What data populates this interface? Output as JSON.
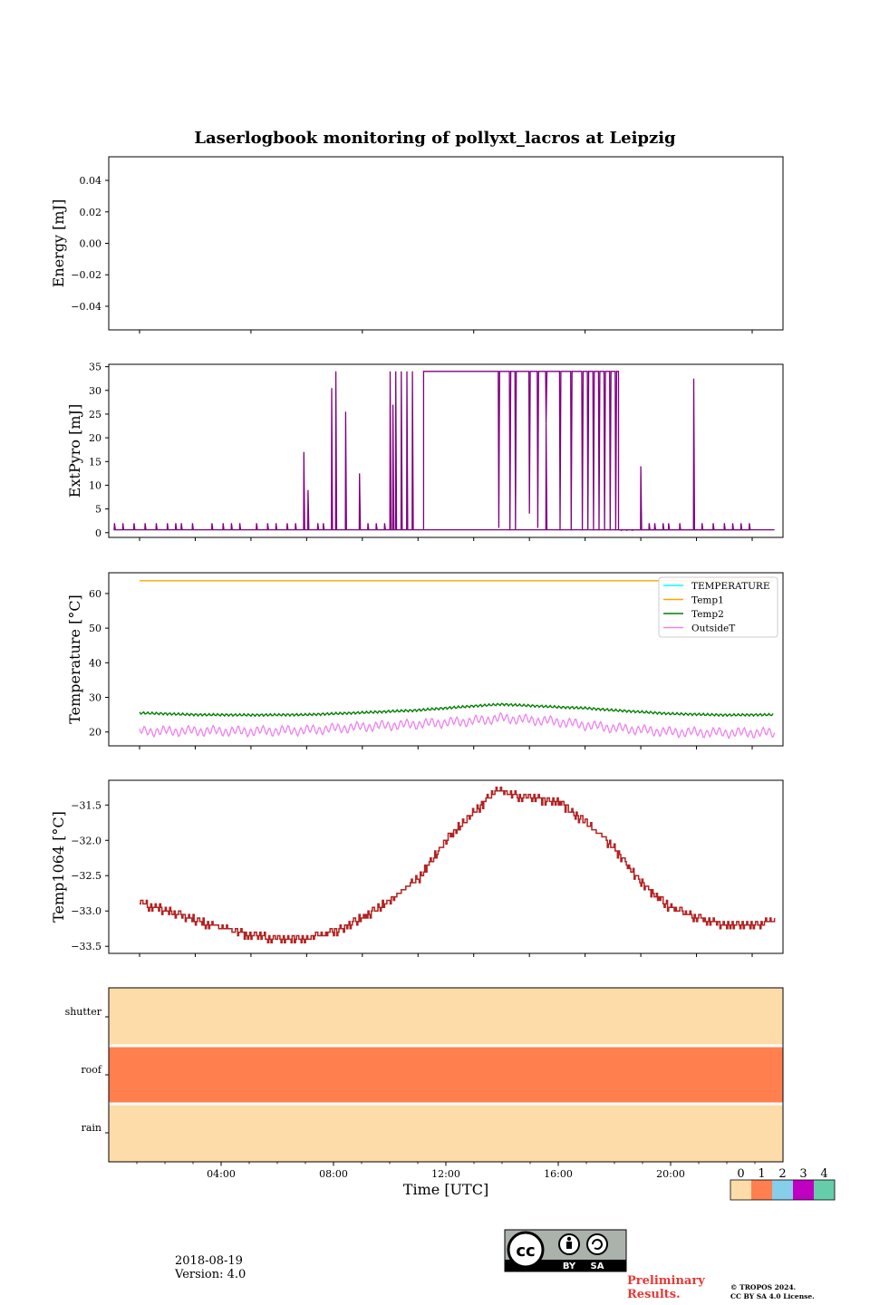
{
  "title": "Laserlogbook monitoring of pollyxt_lacros at Leipzig",
  "footer": {
    "date": "2018-08-19",
    "version": "Version: 4.0",
    "preliminary_line1": "Preliminary",
    "preliminary_line2": "Results.",
    "copyright_line1": "© TROPOS 2024.",
    "copyright_line2": "CC BY SA 4.0 License.",
    "cc_badge": {
      "by": "BY",
      "sa": "SA",
      "cc": "cc"
    }
  },
  "colors": {
    "extpyro": "#800080",
    "temperature": "#00ffff",
    "temp1": "#ffa500",
    "temp2": "#008000",
    "outsideT": "#ee82ee",
    "temp1064": "#b22222",
    "preliminary": "#e53935",
    "status_0": "#fddcaa",
    "status_1": "#ff7f4f",
    "status_2": "#87ceeb",
    "status_3": "#c000c0",
    "status_4": "#66cdaa"
  },
  "chart_data": [
    {
      "type": "line",
      "panel": "energy",
      "ylabel": "Energy [mJ]",
      "ylim": [
        -0.055,
        0.055
      ],
      "yticks": [
        "0.04",
        "0.02",
        "0.00",
        "−0.02",
        "−0.04"
      ],
      "ytick_values": [
        0.04,
        0.02,
        0.0,
        -0.02,
        -0.04
      ],
      "series": []
    },
    {
      "type": "line",
      "panel": "extpyro",
      "ylabel": "ExtPyro [mJ]",
      "ylim": [
        -1,
        35.5
      ],
      "yticks": [
        "35",
        "30",
        "25",
        "20",
        "15",
        "10",
        "5",
        "0"
      ],
      "ytick_values": [
        35,
        30,
        25,
        20,
        15,
        10,
        5,
        0
      ],
      "baseline": 0.6,
      "high": 34,
      "plateau_hours": [
        11.2,
        18.2
      ],
      "spikes": [
        [
          0.1,
          2
        ],
        [
          0.4,
          2
        ],
        [
          0.8,
          2
        ],
        [
          1.2,
          2
        ],
        [
          1.6,
          2
        ],
        [
          2.0,
          2
        ],
        [
          2.3,
          2
        ],
        [
          2.5,
          2
        ],
        [
          2.9,
          2
        ],
        [
          3.6,
          2
        ],
        [
          4.0,
          2
        ],
        [
          4.3,
          2
        ],
        [
          4.6,
          2
        ],
        [
          5.2,
          2
        ],
        [
          5.6,
          2
        ],
        [
          5.9,
          2
        ],
        [
          6.3,
          2
        ],
        [
          6.6,
          2
        ],
        [
          6.9,
          17
        ],
        [
          7.05,
          9
        ],
        [
          7.4,
          2
        ],
        [
          7.6,
          2
        ],
        [
          7.9,
          30.5
        ],
        [
          8.05,
          34
        ],
        [
          8.4,
          25.5
        ],
        [
          8.9,
          12.5
        ],
        [
          9.2,
          2
        ],
        [
          9.5,
          2
        ],
        [
          9.8,
          2
        ],
        [
          10.0,
          34
        ],
        [
          10.1,
          27
        ],
        [
          10.2,
          34
        ],
        [
          10.4,
          34
        ],
        [
          10.6,
          34
        ],
        [
          10.8,
          34
        ],
        [
          13.9,
          1
        ],
        [
          14.3,
          0.5
        ],
        [
          15.0,
          4
        ],
        [
          15.3,
          1
        ],
        [
          15.6,
          23
        ],
        [
          16.1,
          0.5
        ],
        [
          16.5,
          0.5
        ],
        [
          16.9,
          0.5
        ],
        [
          17.3,
          0.5
        ],
        [
          17.5,
          0.5
        ],
        [
          17.7,
          0.5
        ],
        [
          17.9,
          0.5
        ],
        [
          18.1,
          0.5
        ],
        [
          18.3,
          0.5
        ],
        [
          18.5,
          0.5
        ],
        [
          18.7,
          0.5
        ],
        [
          19.0,
          14
        ],
        [
          19.3,
          2
        ],
        [
          19.5,
          2
        ],
        [
          19.8,
          2
        ],
        [
          20.0,
          2
        ],
        [
          20.4,
          2
        ],
        [
          20.9,
          32.5
        ],
        [
          21.2,
          2
        ],
        [
          21.6,
          2
        ],
        [
          22.0,
          2
        ],
        [
          22.3,
          2
        ],
        [
          22.6,
          2
        ],
        [
          22.9,
          2
        ]
      ],
      "dips": [
        13.9,
        14.3,
        14.5,
        15.0,
        15.3,
        15.6,
        16.1,
        16.5,
        16.9,
        17.1,
        17.3,
        17.5,
        17.7,
        17.9,
        18.1
      ],
      "x_start_hour": 1.0,
      "x_end_hour": 23.8
    },
    {
      "type": "line",
      "panel": "temperature",
      "ylabel": "Temperature [°C]",
      "ylim": [
        16,
        66
      ],
      "yticks": [
        "60",
        "50",
        "40",
        "30",
        "20"
      ],
      "ytick_values": [
        60,
        50,
        40,
        30,
        20
      ],
      "legend_position": "top-right",
      "series": [
        {
          "name": "TEMPERATURE",
          "values": []
        },
        {
          "name": "Temp1",
          "values": [
            63.7,
            63.7
          ]
        },
        {
          "name": "Temp2",
          "base": [
            25.5,
            25.0,
            24.9,
            25.0,
            25.6,
            26.3,
            27.5,
            28.0,
            27.2,
            26.9,
            26.3,
            25.3,
            24.9,
            25.0
          ]
        },
        {
          "name": "OutsideT",
          "base": [
            20.2,
            20.3,
            20.2,
            20.5,
            21.5,
            22.3,
            23.2,
            24.0,
            23.0,
            22.0,
            21.2,
            20.0,
            19.8,
            19.8
          ]
        }
      ],
      "profile_hours": [
        1,
        3,
        5,
        7,
        9,
        11,
        13,
        14,
        16,
        17,
        18,
        20,
        22,
        23.8
      ]
    },
    {
      "type": "line",
      "panel": "temp1064",
      "ylabel": "Temp1064 [°C]",
      "ylim": [
        -33.6,
        -31.15
      ],
      "yticks": [
        "−31.5",
        "−32.0",
        "−32.5",
        "−33.0",
        "−33.5"
      ],
      "ytick_values": [
        -31.5,
        -32.0,
        -32.5,
        -33.0,
        -33.5
      ],
      "series": [
        {
          "name": "Temp1064",
          "hours": [
            1.0,
            2.0,
            3.5,
            5.0,
            6.0,
            7.0,
            8.0,
            9.0,
            10.0,
            11.0,
            12.0,
            13.0,
            13.8,
            14.8,
            16.0,
            17.0,
            18.0,
            19.0,
            20.0,
            21.0,
            22.0,
            23.0,
            23.8
          ],
          "values": [
            -32.9,
            -33.0,
            -33.2,
            -33.35,
            -33.4,
            -33.4,
            -33.3,
            -33.1,
            -32.85,
            -32.55,
            -32.0,
            -31.6,
            -31.3,
            -31.4,
            -31.45,
            -31.75,
            -32.1,
            -32.6,
            -32.95,
            -33.1,
            -33.2,
            -33.2,
            -33.15
          ]
        }
      ]
    },
    {
      "type": "heatmap",
      "panel": "status",
      "rows": [
        "shutter",
        "roof",
        "rain"
      ],
      "row_values": [
        0,
        1,
        0
      ],
      "xlabel": "Time [UTC]",
      "xlim_hours": [
        0,
        24
      ],
      "xticks": [
        "04:00",
        "08:00",
        "12:00",
        "16:00",
        "20:00"
      ],
      "xtick_hours": [
        4,
        8,
        12,
        16,
        20
      ],
      "colorbar": {
        "ticks": [
          "0",
          "1",
          "2",
          "3",
          "4"
        ]
      }
    }
  ]
}
